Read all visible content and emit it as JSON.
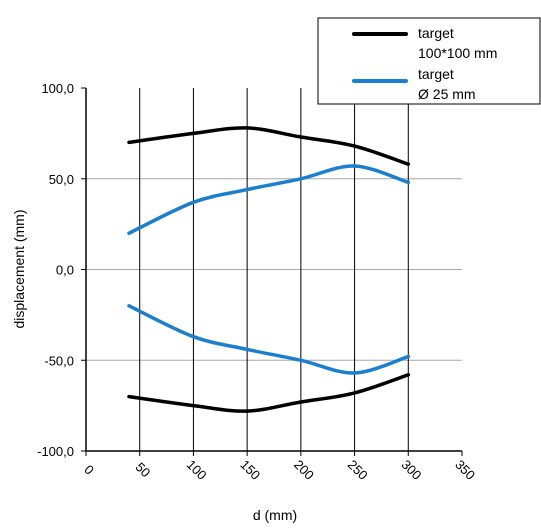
{
  "chart_data": {
    "type": "line",
    "xlabel": "d (mm)",
    "ylabel": "displacement (mm)",
    "xlim": [
      0,
      350
    ],
    "ylim": [
      -100,
      100
    ],
    "x_ticks": [
      0,
      50,
      100,
      150,
      200,
      250,
      300,
      350
    ],
    "x_tick_labels": [
      "0",
      "50",
      "100",
      "150",
      "200",
      "250",
      "300",
      "350"
    ],
    "y_ticks": [
      100,
      50,
      0,
      -50,
      -100
    ],
    "y_tick_labels": [
      "100,0",
      "50,0",
      "0,0",
      "-50,0",
      "-100,0"
    ],
    "grid": {
      "vertical": true,
      "horizontal": true
    },
    "legend_position": "top-right",
    "legend": [
      {
        "lines": [
          "target",
          "100*100 mm"
        ],
        "color": "#000000"
      },
      {
        "lines": [
          "target",
          "Ø 25 mm"
        ],
        "color": "#1a7fd0"
      }
    ],
    "series": [
      {
        "legend_index": 0,
        "color": "#000000",
        "x": [
          40,
          100,
          150,
          200,
          250,
          300
        ],
        "y": [
          70,
          75,
          78,
          73,
          68,
          58
        ]
      },
      {
        "legend_index": 0,
        "color": "#000000",
        "x": [
          40,
          100,
          150,
          200,
          250,
          300
        ],
        "y": [
          -70,
          -75,
          -78,
          -73,
          -68,
          -58
        ]
      },
      {
        "legend_index": 1,
        "color": "#1a7fd0",
        "x": [
          40,
          100,
          150,
          200,
          250,
          300
        ],
        "y": [
          20,
          37,
          44,
          50,
          57,
          48
        ]
      },
      {
        "legend_index": 1,
        "color": "#1a7fd0",
        "x": [
          40,
          100,
          150,
          200,
          250,
          300
        ],
        "y": [
          -20,
          -37,
          -44,
          -50,
          -57,
          -48
        ]
      }
    ]
  }
}
